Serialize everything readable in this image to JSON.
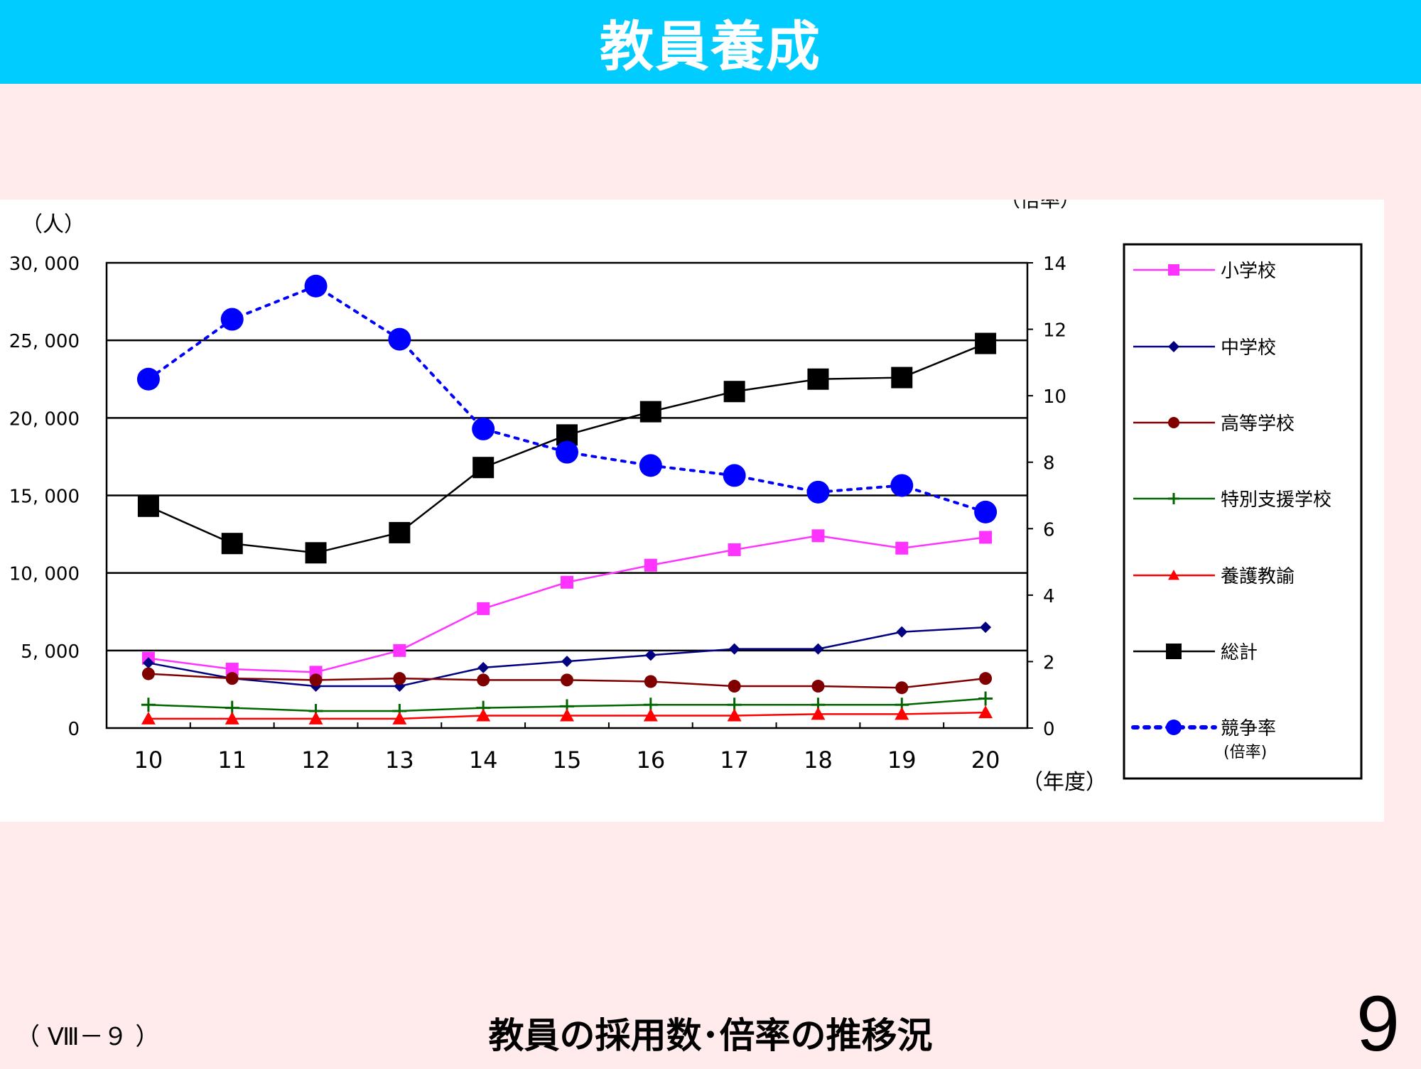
{
  "header": {
    "title": "教員養成"
  },
  "footer": {
    "code": "（ Ⅷ－９ ）",
    "caption": "教員の採用数･倍率の推移況",
    "page_number": "9"
  },
  "colors": {
    "header_bg": "#00CCFF",
    "page_bg": "#FFEBEB"
  },
  "chart_data": {
    "type": "line",
    "x": [
      "10",
      "11",
      "12",
      "13",
      "14",
      "15",
      "16",
      "17",
      "18",
      "19",
      "20"
    ],
    "xlabel": "（年度）",
    "ylabel_left": "（人）",
    "ylabel_right": "（倍率）",
    "ylim_left": [
      0,
      30000
    ],
    "ylim_right": [
      0,
      14
    ],
    "yticks_left": [
      0,
      5000,
      10000,
      15000,
      20000,
      25000,
      30000
    ],
    "ytick_labels_left": [
      "0",
      "5, 000",
      "10, 000",
      "15, 000",
      "20, 000",
      "25, 000",
      "30, 000"
    ],
    "yticks_right": [
      0,
      2,
      4,
      6,
      8,
      10,
      12,
      14
    ],
    "ytick_labels_right": [
      "0",
      "2",
      "4",
      "6",
      "8",
      "10",
      "12",
      "14"
    ],
    "grid": "horizontal",
    "legend_position": "right",
    "series": [
      {
        "name": "小学校",
        "axis": "left",
        "color": "#FF33FF",
        "marker": "square",
        "dash": false,
        "values": [
          4500,
          3800,
          3600,
          5000,
          7700,
          9400,
          10500,
          11500,
          12400,
          11600,
          12300
        ]
      },
      {
        "name": "中学校",
        "axis": "left",
        "color": "#000080",
        "marker": "diamond",
        "dash": false,
        "values": [
          4200,
          3200,
          2700,
          2700,
          3900,
          4300,
          4700,
          5100,
          5100,
          6200,
          6500
        ]
      },
      {
        "name": "高等学校",
        "axis": "left",
        "color": "#800000",
        "marker": "circle",
        "dash": false,
        "values": [
          3500,
          3200,
          3100,
          3200,
          3100,
          3100,
          3000,
          2700,
          2700,
          2600,
          3200
        ]
      },
      {
        "name": "特別支援学校",
        "axis": "left",
        "color": "#006600",
        "marker": "plus",
        "dash": false,
        "values": [
          1500,
          1300,
          1100,
          1100,
          1300,
          1400,
          1500,
          1500,
          1500,
          1500,
          1900
        ]
      },
      {
        "name": "養護教諭",
        "axis": "left",
        "color": "#FF0000",
        "marker": "triangle",
        "dash": false,
        "values": [
          600,
          600,
          600,
          600,
          800,
          800,
          800,
          800,
          900,
          900,
          1000
        ]
      },
      {
        "name": "総計",
        "axis": "left",
        "color": "#000000",
        "marker": "square",
        "dash": false,
        "values": [
          14300,
          11900,
          11300,
          12600,
          16800,
          18900,
          20400,
          21700,
          22500,
          22600,
          24800
        ]
      },
      {
        "name": "競争率",
        "name2": "(倍率)",
        "axis": "right",
        "color": "#0000FF",
        "marker": "circle",
        "dash": true,
        "values": [
          10.5,
          12.3,
          13.3,
          11.7,
          9.0,
          8.3,
          7.9,
          7.6,
          7.1,
          7.3,
          6.5
        ]
      }
    ]
  }
}
